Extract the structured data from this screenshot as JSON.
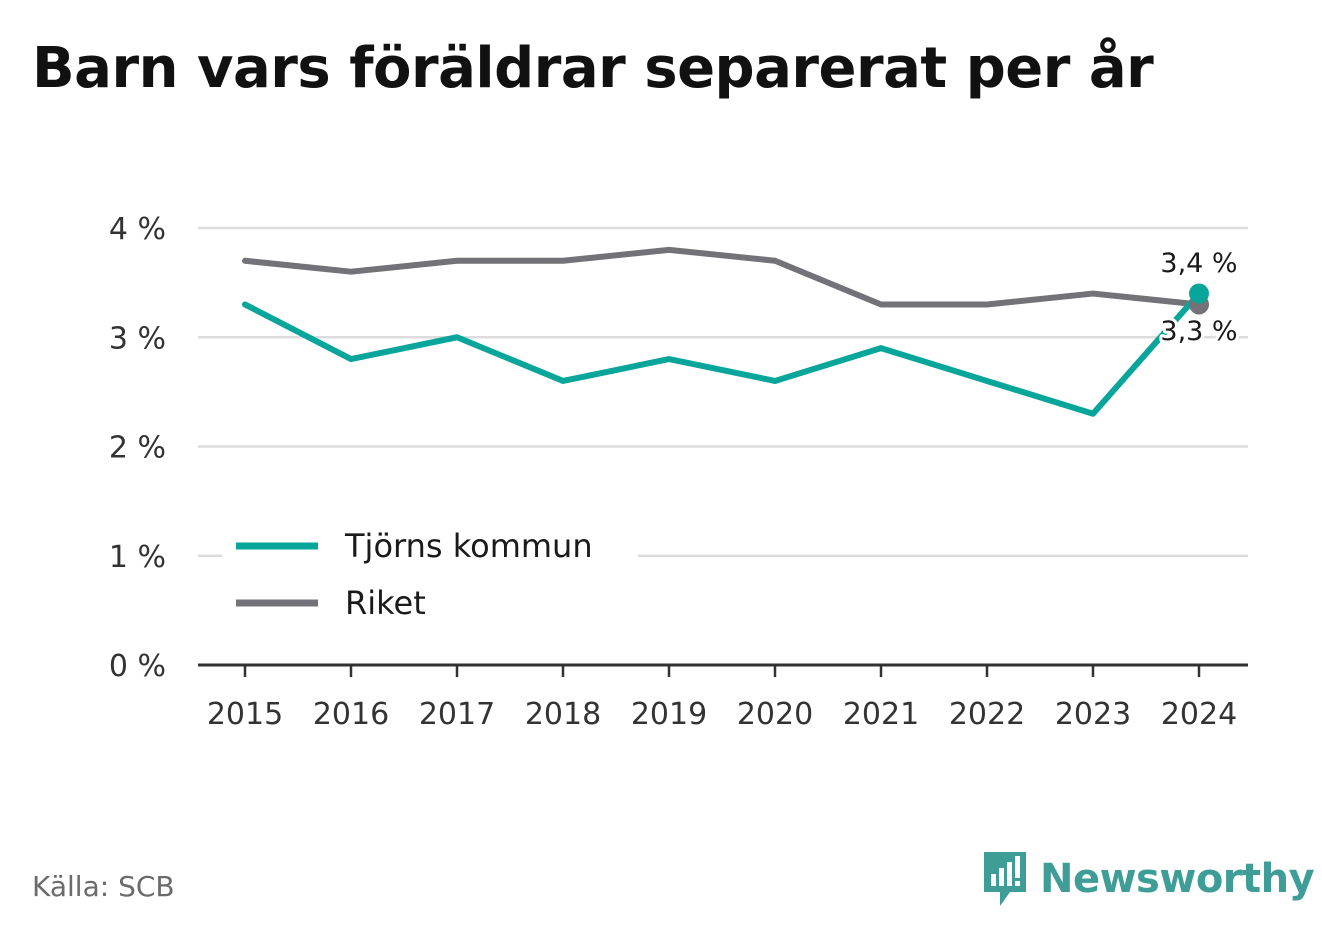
{
  "title": "Barn vars föräldrar separerat per år",
  "source": "Källa: SCB",
  "brand": "Newsworthy",
  "colors": {
    "primary": "#08a59a",
    "secondary": "#737278",
    "brand": "#3e9d96"
  },
  "chart_data": {
    "type": "line",
    "categories": [
      "2015",
      "2016",
      "2017",
      "2018",
      "2019",
      "2020",
      "2021",
      "2022",
      "2023",
      "2024"
    ],
    "series": [
      {
        "name": "Tjörns kommun",
        "color": "#08a59a",
        "values": [
          3.3,
          2.8,
          3.0,
          2.6,
          2.8,
          2.6,
          2.9,
          2.6,
          2.3,
          3.4
        ]
      },
      {
        "name": "Riket",
        "color": "#737278",
        "values": [
          3.7,
          3.6,
          3.7,
          3.7,
          3.8,
          3.7,
          3.3,
          3.3,
          3.4,
          3.3
        ]
      }
    ],
    "yticks": [
      "0 %",
      "1 %",
      "2 %",
      "3 %",
      "4 %"
    ],
    "ylim": [
      0,
      4
    ],
    "grid": true,
    "legend_position": "bottom-left",
    "end_labels": [
      "3,4 %",
      "3,3 %"
    ]
  }
}
